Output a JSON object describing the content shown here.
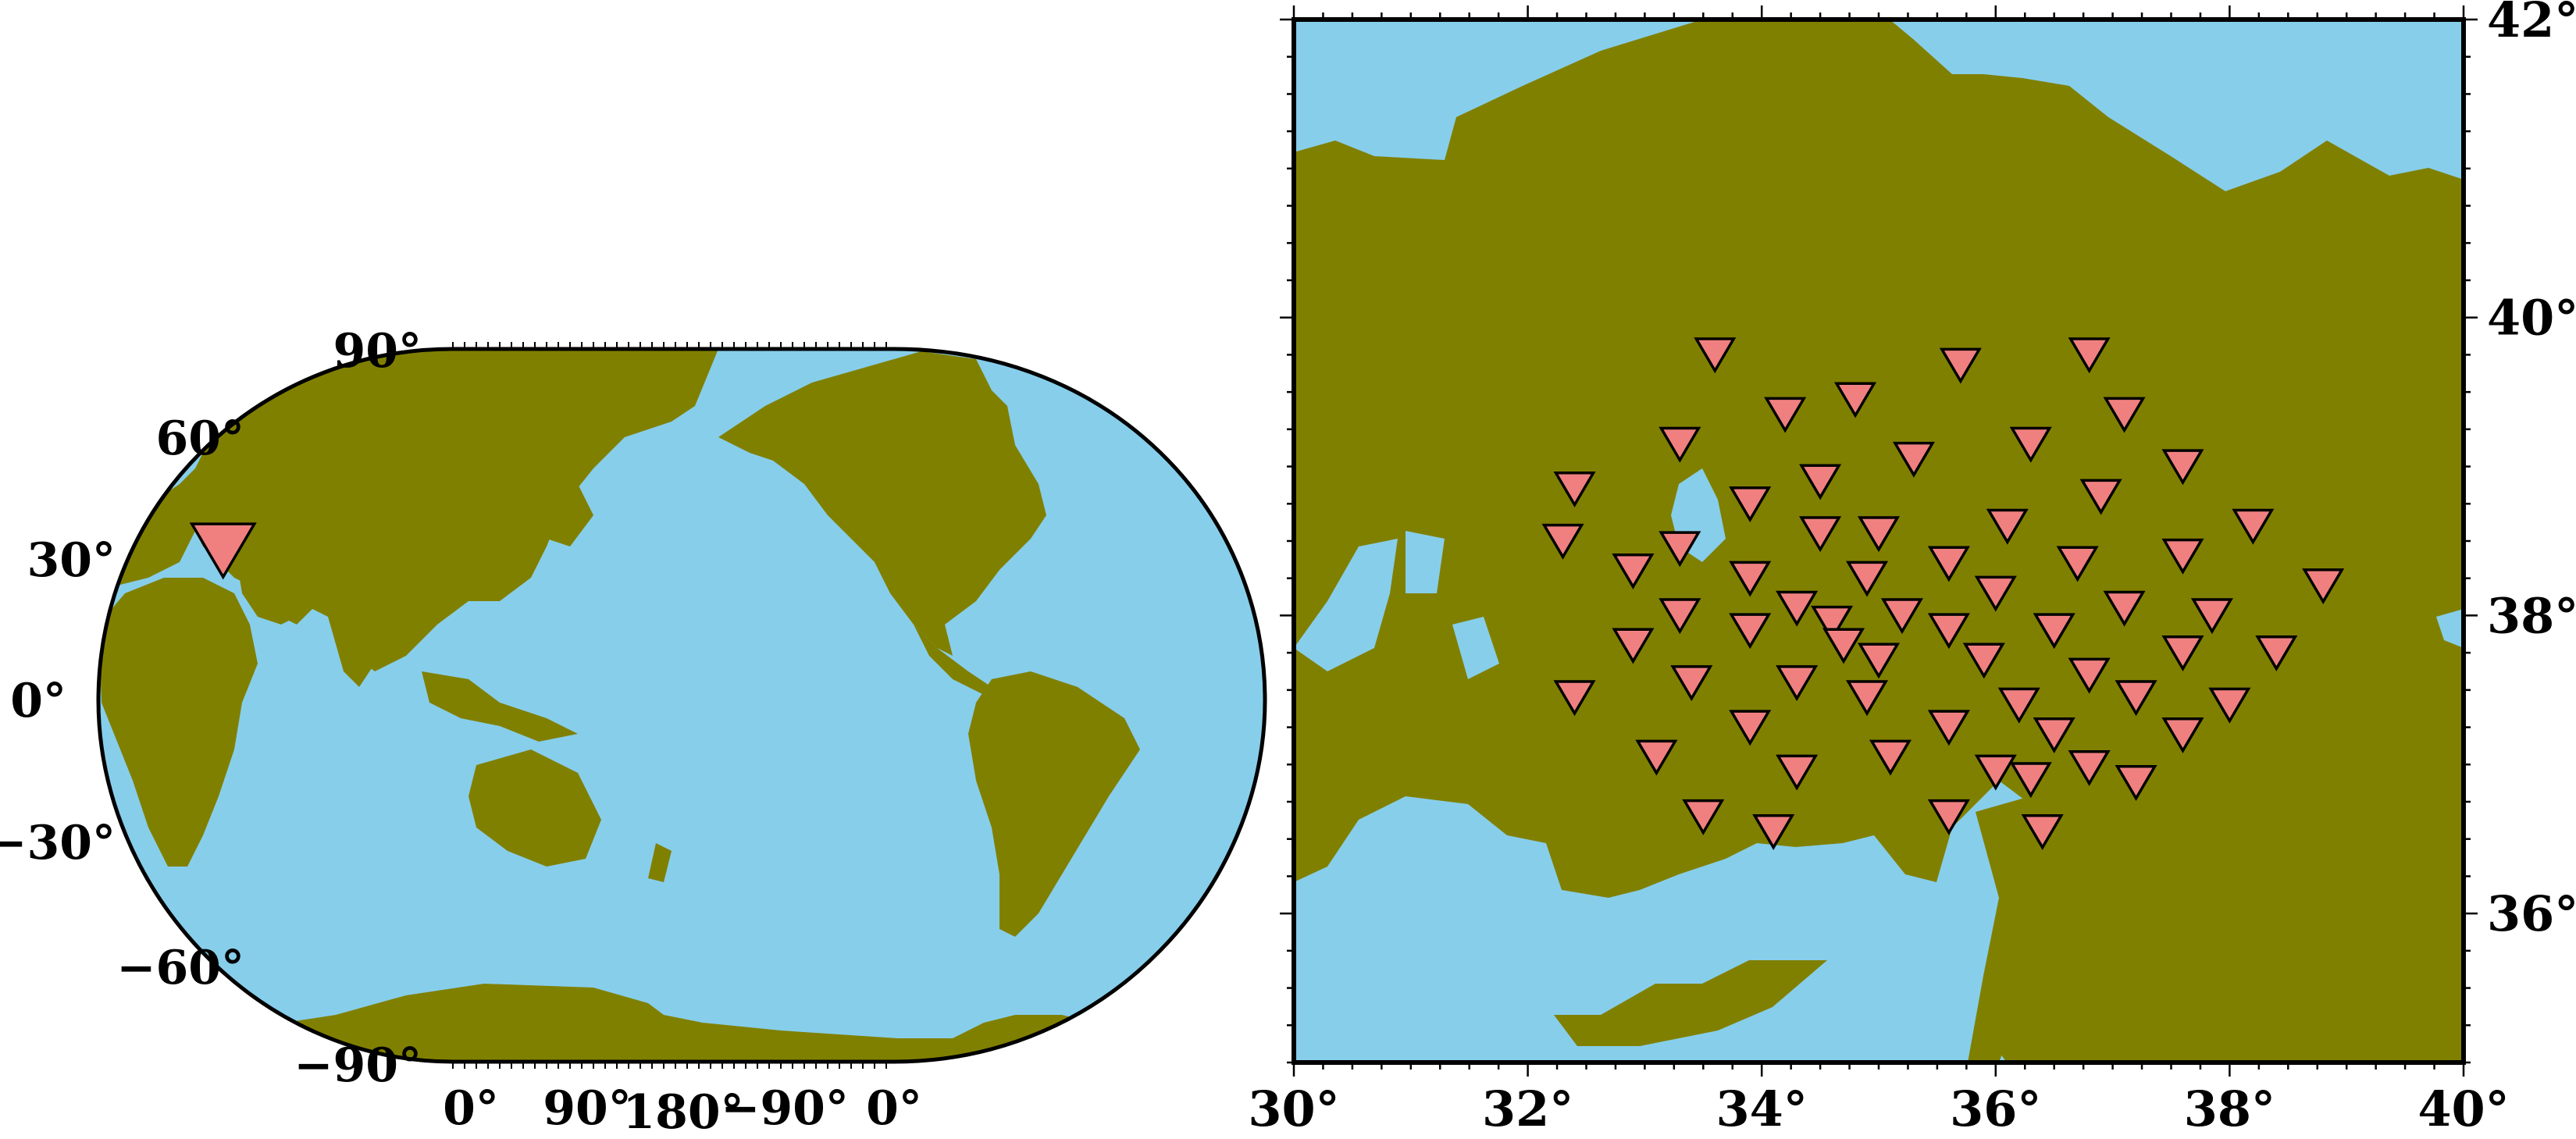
{
  "colors": {
    "ocean": "#87ceeb",
    "land": "#808000",
    "station": "#f08080",
    "frame": "#000000"
  },
  "world_map": {
    "lat_labels": [
      "90°",
      "60°",
      "30°",
      "0°",
      "−30°",
      "−60°",
      "−90°"
    ],
    "lon_labels": [
      "0°",
      "90°",
      "180°",
      "−90°",
      "0°"
    ],
    "marker": {
      "symbol": "inverted-triangle",
      "lon": 35,
      "lat": 38
    }
  },
  "regional_map": {
    "lon_labels": [
      "30°",
      "32°",
      "34°",
      "36°",
      "38°",
      "40°"
    ],
    "lat_labels": [
      "36°",
      "38°",
      "40°",
      "42°"
    ],
    "lon_range": [
      30,
      40
    ],
    "lat_range": [
      35,
      42
    ],
    "stations": [
      [
        33.6,
        39.75
      ],
      [
        35.7,
        39.68
      ],
      [
        36.8,
        39.75
      ],
      [
        34.2,
        39.35
      ],
      [
        34.8,
        39.45
      ],
      [
        37.1,
        39.35
      ],
      [
        33.3,
        39.15
      ],
      [
        35.3,
        39.05
      ],
      [
        36.3,
        39.15
      ],
      [
        37.6,
        39.0
      ],
      [
        32.4,
        38.85
      ],
      [
        34.5,
        38.9
      ],
      [
        33.9,
        38.75
      ],
      [
        36.9,
        38.8
      ],
      [
        34.5,
        38.55
      ],
      [
        35.0,
        38.55
      ],
      [
        36.1,
        38.6
      ],
      [
        38.2,
        38.6
      ],
      [
        32.3,
        38.5
      ],
      [
        33.3,
        38.45
      ],
      [
        32.9,
        38.3
      ],
      [
        33.9,
        38.25
      ],
      [
        34.9,
        38.25
      ],
      [
        35.6,
        38.35
      ],
      [
        36.7,
        38.35
      ],
      [
        37.6,
        38.4
      ],
      [
        38.8,
        38.2
      ],
      [
        36.0,
        38.15
      ],
      [
        33.3,
        38.0
      ],
      [
        34.3,
        38.05
      ],
      [
        35.2,
        38.0
      ],
      [
        37.1,
        38.05
      ],
      [
        37.85,
        38.0
      ],
      [
        33.9,
        37.9
      ],
      [
        34.6,
        37.95
      ],
      [
        34.7,
        37.8
      ],
      [
        35.6,
        37.9
      ],
      [
        36.5,
        37.9
      ],
      [
        32.9,
        37.8
      ],
      [
        35.0,
        37.7
      ],
      [
        35.9,
        37.7
      ],
      [
        36.8,
        37.6
      ],
      [
        37.6,
        37.75
      ],
      [
        38.4,
        37.75
      ],
      [
        33.4,
        37.55
      ],
      [
        34.3,
        37.55
      ],
      [
        34.9,
        37.45
      ],
      [
        37.2,
        37.45
      ],
      [
        32.4,
        37.45
      ],
      [
        36.2,
        37.4
      ],
      [
        38.0,
        37.4
      ],
      [
        33.9,
        37.25
      ],
      [
        35.6,
        37.25
      ],
      [
        36.5,
        37.2
      ],
      [
        37.6,
        37.2
      ],
      [
        33.1,
        37.05
      ],
      [
        35.1,
        37.05
      ],
      [
        34.3,
        36.95
      ],
      [
        36.0,
        36.95
      ],
      [
        36.8,
        36.98
      ],
      [
        36.3,
        36.9
      ],
      [
        37.2,
        36.88
      ],
      [
        33.5,
        36.65
      ],
      [
        35.6,
        36.65
      ],
      [
        34.1,
        36.55
      ],
      [
        36.4,
        36.55
      ]
    ]
  }
}
